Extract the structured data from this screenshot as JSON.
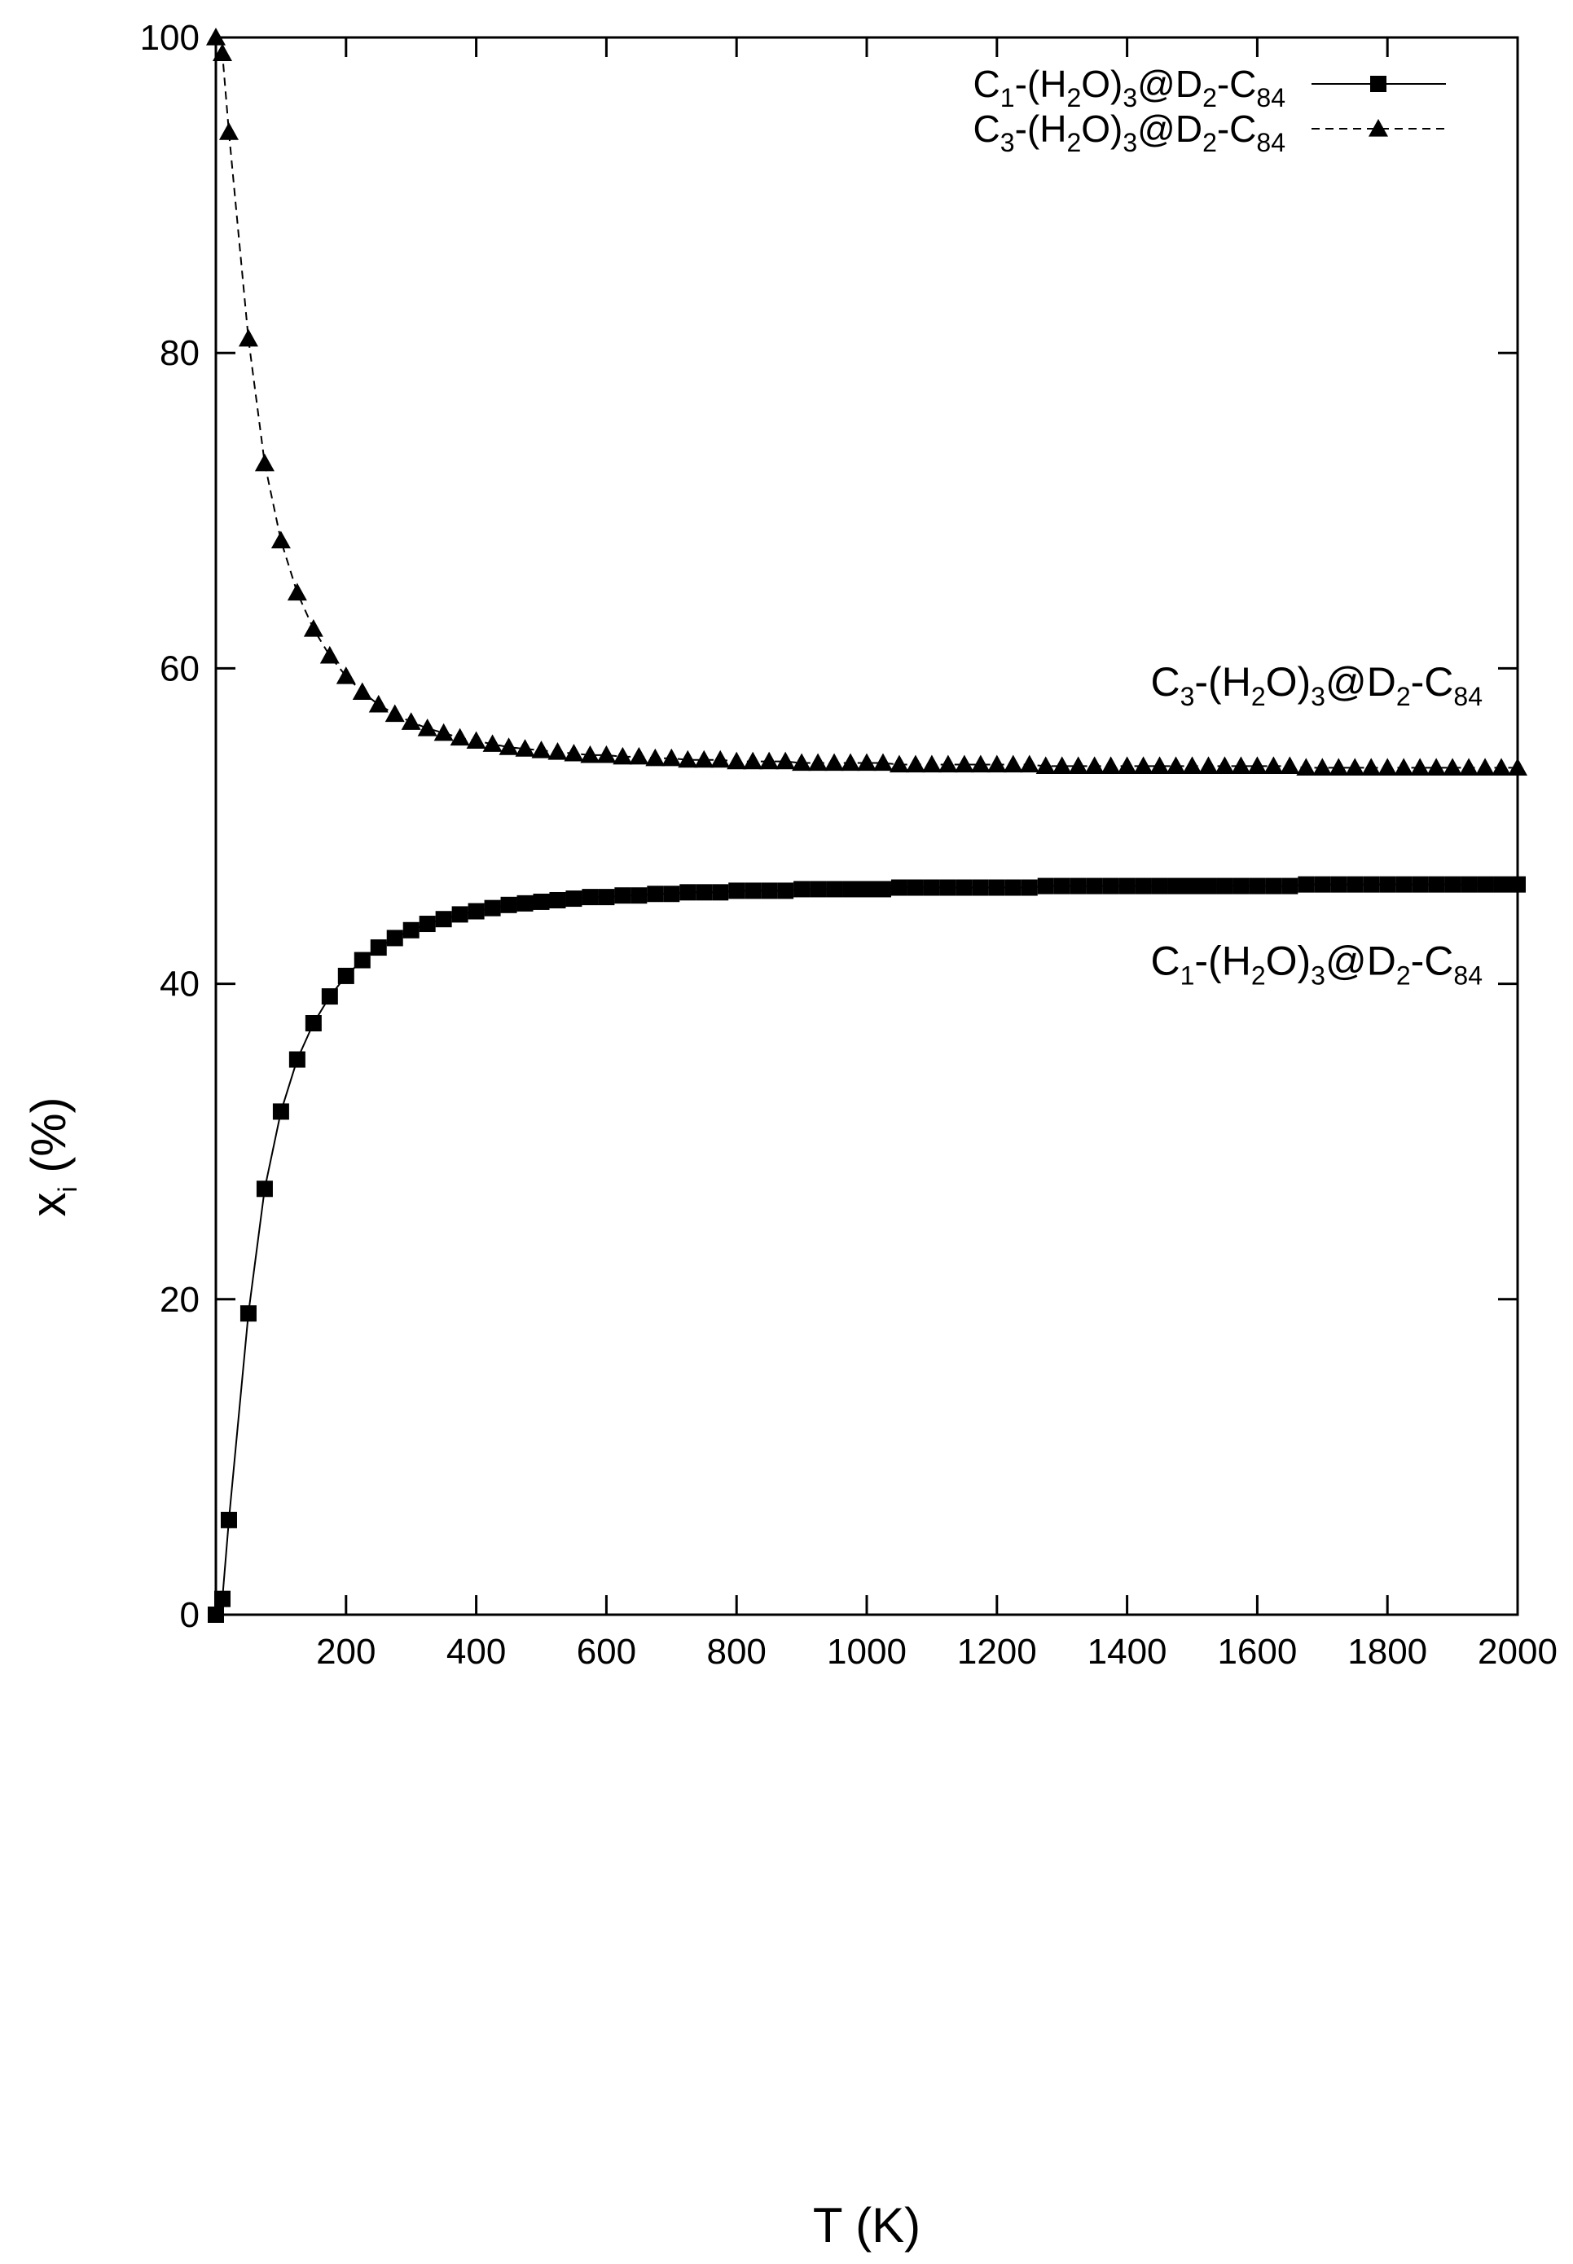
{
  "chart_data": {
    "type": "line",
    "xlabel": {
      "main": "T (K)"
    },
    "ylabel": {
      "main": "x",
      "sub": "i",
      "rest": " (%)"
    },
    "xlim": [
      0,
      2000
    ],
    "ylim": [
      0,
      100
    ],
    "x_ticks": [
      200,
      400,
      600,
      800,
      1000,
      1200,
      1400,
      1600,
      1800,
      2000
    ],
    "y_ticks": [
      0,
      20,
      40,
      60,
      80,
      100
    ],
    "grid": false,
    "legend_position": "top-right",
    "series": [
      {
        "name": "C1-(H2O)3@D2-C84",
        "name_parts": [
          "C",
          "1",
          "-(H",
          "2",
          "O)",
          "3",
          "@D",
          "2",
          "-C",
          "84"
        ],
        "marker": "square",
        "line": "solid",
        "curve_label_y": 41.5,
        "x": [
          0,
          10,
          20,
          50,
          75,
          100,
          125,
          150,
          175,
          200,
          225,
          250,
          275,
          300,
          325,
          350,
          375,
          400,
          425,
          450,
          475,
          500,
          525,
          550,
          575,
          600,
          625,
          650,
          675,
          700,
          725,
          750,
          775,
          800,
          825,
          850,
          875,
          900,
          925,
          950,
          975,
          1000,
          1025,
          1050,
          1075,
          1100,
          1125,
          1150,
          1175,
          1200,
          1225,
          1250,
          1275,
          1300,
          1325,
          1350,
          1375,
          1400,
          1425,
          1450,
          1475,
          1500,
          1525,
          1550,
          1575,
          1600,
          1625,
          1650,
          1675,
          1700,
          1725,
          1750,
          1775,
          1800,
          1825,
          1850,
          1875,
          1900,
          1925,
          1950,
          1975,
          2000
        ],
        "y": [
          0,
          1.0,
          6.0,
          19.1,
          27.0,
          31.9,
          35.2,
          37.5,
          39.2,
          40.5,
          41.5,
          42.3,
          42.9,
          43.4,
          43.8,
          44.1,
          44.4,
          44.6,
          44.8,
          45.0,
          45.1,
          45.2,
          45.3,
          45.4,
          45.5,
          45.5,
          45.6,
          45.6,
          45.7,
          45.7,
          45.8,
          45.8,
          45.8,
          45.9,
          45.9,
          45.9,
          45.9,
          46.0,
          46.0,
          46.0,
          46.0,
          46.0,
          46.0,
          46.1,
          46.1,
          46.1,
          46.1,
          46.1,
          46.1,
          46.1,
          46.1,
          46.1,
          46.2,
          46.2,
          46.2,
          46.2,
          46.2,
          46.2,
          46.2,
          46.2,
          46.2,
          46.2,
          46.2,
          46.2,
          46.2,
          46.2,
          46.2,
          46.2,
          46.3,
          46.3,
          46.3,
          46.3,
          46.3,
          46.3,
          46.3,
          46.3,
          46.3,
          46.3,
          46.3,
          46.3,
          46.3,
          46.3
        ]
      },
      {
        "name": "C3-(H2O)3@D2-C84",
        "name_parts": [
          "C",
          "3",
          "-(H",
          "2",
          "O)",
          "3",
          "@D",
          "2",
          "-C",
          "84"
        ],
        "marker": "triangle",
        "line": "dashed",
        "curve_label_y": 59.2,
        "x": [
          0,
          10,
          20,
          50,
          75,
          100,
          125,
          150,
          175,
          200,
          225,
          250,
          275,
          300,
          325,
          350,
          375,
          400,
          425,
          450,
          475,
          500,
          525,
          550,
          575,
          600,
          625,
          650,
          675,
          700,
          725,
          750,
          775,
          800,
          825,
          850,
          875,
          900,
          925,
          950,
          975,
          1000,
          1025,
          1050,
          1075,
          1100,
          1125,
          1150,
          1175,
          1200,
          1225,
          1250,
          1275,
          1300,
          1325,
          1350,
          1375,
          1400,
          1425,
          1450,
          1475,
          1500,
          1525,
          1550,
          1575,
          1600,
          1625,
          1650,
          1675,
          1700,
          1725,
          1750,
          1775,
          1800,
          1825,
          1850,
          1875,
          1900,
          1925,
          1950,
          1975,
          2000
        ],
        "y": [
          100,
          99.0,
          94.0,
          80.9,
          73.0,
          68.1,
          64.8,
          62.5,
          60.8,
          59.5,
          58.5,
          57.7,
          57.1,
          56.6,
          56.2,
          55.9,
          55.6,
          55.4,
          55.2,
          55.0,
          54.9,
          54.8,
          54.7,
          54.6,
          54.5,
          54.5,
          54.4,
          54.4,
          54.3,
          54.3,
          54.2,
          54.2,
          54.2,
          54.1,
          54.1,
          54.1,
          54.1,
          54.0,
          54.0,
          54.0,
          54.0,
          54.0,
          54.0,
          53.9,
          53.9,
          53.9,
          53.9,
          53.9,
          53.9,
          53.9,
          53.9,
          53.9,
          53.8,
          53.8,
          53.8,
          53.8,
          53.8,
          53.8,
          53.8,
          53.8,
          53.8,
          53.8,
          53.8,
          53.8,
          53.8,
          53.8,
          53.8,
          53.8,
          53.7,
          53.7,
          53.7,
          53.7,
          53.7,
          53.7,
          53.7,
          53.7,
          53.7,
          53.7,
          53.7,
          53.7,
          53.7,
          53.7
        ]
      }
    ]
  }
}
